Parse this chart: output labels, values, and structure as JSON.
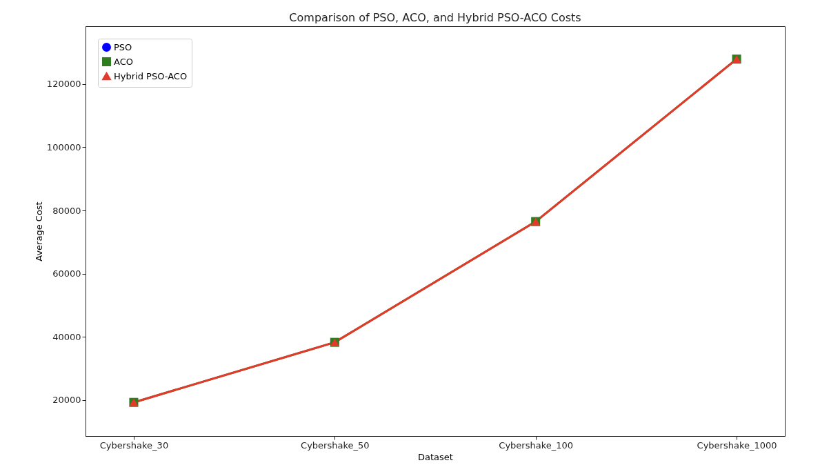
{
  "chart_data": {
    "type": "line",
    "title": "Comparison of PSO, ACO, and Hybrid PSO-ACO Costs",
    "xlabel": "Dataset",
    "ylabel": "Average Cost",
    "categories": [
      "Cybershake_30",
      "Cybershake_50",
      "Cybershake_100",
      "Cybershake_1000"
    ],
    "series": [
      {
        "name": "PSO",
        "color": "#0000ff",
        "marker": "circle",
        "values": [
          null,
          null,
          null,
          null
        ]
      },
      {
        "name": "ACO",
        "color": "#2e7d1f",
        "marker": "square",
        "values": [
          19300,
          38300,
          76500,
          127900
        ]
      },
      {
        "name": "Hybrid PSO-ACO",
        "color": "#e5392b",
        "marker": "triangle",
        "values": [
          19300,
          38300,
          76500,
          127900
        ]
      }
    ],
    "ylim": [
      8650,
      138300
    ],
    "yticks": [
      20000,
      40000,
      60000,
      80000,
      100000,
      120000
    ],
    "grid": false,
    "legend": "top left",
    "line_style": "solid"
  }
}
